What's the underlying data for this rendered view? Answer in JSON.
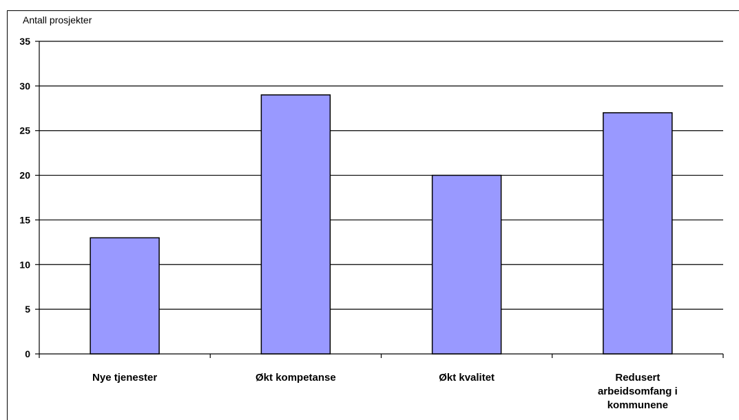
{
  "chart_data": {
    "type": "bar",
    "title": "",
    "xlabel": "",
    "ylabel": "Antall prosjekter",
    "ylim": [
      0,
      35
    ],
    "yticks": [
      0,
      5,
      10,
      15,
      20,
      25,
      30,
      35
    ],
    "grid": true,
    "legend": "none",
    "categories": [
      [
        "Nye tjenester"
      ],
      [
        "Økt kompetanse"
      ],
      [
        "Økt kvalitet"
      ],
      [
        "Redusert",
        "arbeidsomfang i",
        "kommunene"
      ]
    ],
    "values": [
      13,
      29,
      20,
      27
    ],
    "colors": {
      "bar_fill": "#9999ff",
      "bar_stroke": "#000000",
      "grid": "#000000"
    }
  }
}
